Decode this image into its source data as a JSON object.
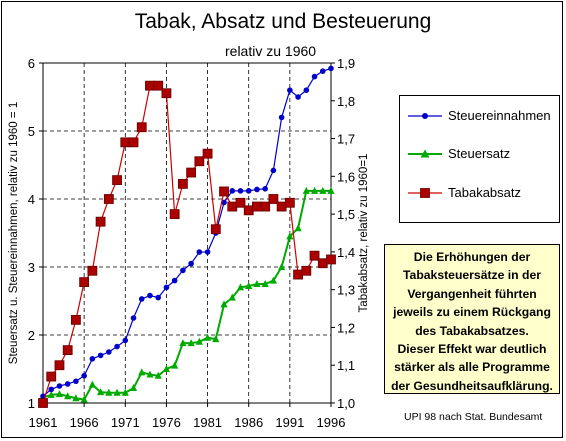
{
  "chart_data": {
    "type": "line",
    "title": "Tabak, Absatz und Besteuerung",
    "subtitle": "relativ zu 1960",
    "ylabel_left": "Steuersatz u. Steuereinnahmen, relativ zu 1960 = 1",
    "ylabel_right": "Tabakabsatz, relativ zu 1960=1",
    "ylim_left": [
      1,
      6
    ],
    "ylim_right": [
      1.0,
      1.9
    ],
    "xlim": [
      1961,
      1996
    ],
    "x_ticks": [
      "1961",
      "1966",
      "1971",
      "1976",
      "1981",
      "1986",
      "1991",
      "1996"
    ],
    "y_ticks_left": [
      "1",
      "2",
      "3",
      "4",
      "5",
      "6"
    ],
    "y_ticks_right": [
      "1,0",
      "1,1",
      "1,2",
      "1,3",
      "1,4",
      "1,5",
      "1,6",
      "1,7",
      "1,8",
      "1,9"
    ],
    "x": [
      1961,
      1962,
      1963,
      1964,
      1965,
      1966,
      1967,
      1968,
      1969,
      1970,
      1971,
      1972,
      1973,
      1974,
      1975,
      1976,
      1977,
      1978,
      1979,
      1980,
      1981,
      1982,
      1983,
      1984,
      1985,
      1986,
      1987,
      1988,
      1989,
      1990,
      1991,
      1992,
      1993,
      1994,
      1995,
      1996
    ],
    "series": [
      {
        "name": "Steuereinnahmen",
        "axis": "left",
        "color": "#0000cc",
        "marker": "circle",
        "values": [
          1.1,
          1.2,
          1.25,
          1.28,
          1.32,
          1.4,
          1.65,
          1.7,
          1.75,
          1.83,
          1.92,
          2.25,
          2.53,
          2.58,
          2.55,
          2.7,
          2.8,
          2.95,
          3.05,
          3.22,
          3.22,
          3.5,
          3.95,
          4.12,
          4.12,
          4.12,
          4.14,
          4.15,
          4.42,
          5.2,
          5.6,
          5.5,
          5.6,
          5.8,
          5.88,
          5.92
        ]
      },
      {
        "name": "Steuersatz",
        "axis": "left",
        "color": "#00aa00",
        "marker": "triangle",
        "values": [
          1.08,
          1.12,
          1.13,
          1.1,
          1.07,
          1.05,
          1.27,
          1.16,
          1.15,
          1.15,
          1.15,
          1.22,
          1.45,
          1.42,
          1.4,
          1.5,
          1.55,
          1.88,
          1.88,
          1.9,
          1.96,
          1.94,
          2.45,
          2.55,
          2.7,
          2.72,
          2.75,
          2.75,
          2.8,
          3.0,
          3.45,
          3.57,
          4.12,
          4.12,
          4.12,
          4.12
        ]
      },
      {
        "name": "Tabakabsatz",
        "axis": "right",
        "color": "#cc0000",
        "marker": "square",
        "values": [
          1.0,
          1.07,
          1.1,
          1.14,
          1.22,
          1.32,
          1.35,
          1.48,
          1.54,
          1.59,
          1.69,
          1.69,
          1.73,
          1.84,
          1.84,
          1.82,
          1.5,
          1.58,
          1.61,
          1.64,
          1.66,
          1.46,
          1.56,
          1.52,
          1.53,
          1.51,
          1.52,
          1.52,
          1.54,
          1.52,
          1.53,
          1.34,
          1.35,
          1.39,
          1.37,
          1.38
        ]
      }
    ],
    "legend_position": "right"
  },
  "note_lines": [
    "Die Erhöhungen der",
    "Tabaksteuersätze in der",
    "Vergangenheit führten",
    "jeweils zu einem Rückgang",
    "des Tabakabsatzes.",
    "Dieser Effekt war deutlich",
    "stärker als alle Programme",
    "der Gesundheitsaufklärung."
  ],
  "source": "UPI 98 nach Stat. Bundesamt"
}
